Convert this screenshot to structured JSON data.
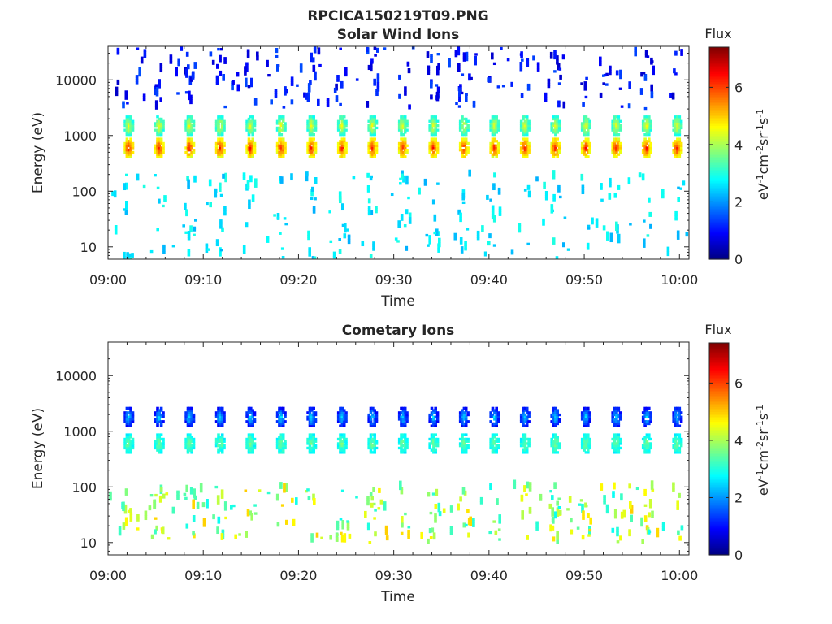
{
  "figure": {
    "title": "RPCICA150219T09.PNG"
  },
  "chart_data": [
    {
      "type": "heatmap",
      "title": "Solar Wind Ions",
      "xlabel": "Time",
      "ylabel": "Energy (eV)",
      "x_range": [
        "09:00",
        "10:01"
      ],
      "x_ticks": [
        "09:00",
        "09:10",
        "09:20",
        "09:30",
        "09:40",
        "09:50",
        "10:00"
      ],
      "y_scale": "log",
      "y_range": [
        6,
        40000
      ],
      "y_ticks": [
        "10",
        "100",
        "1000",
        "10000"
      ],
      "colorbar": {
        "label": "Flux",
        "units": "eV⁻¹cm⁻²sr⁻¹s⁻¹",
        "ticks": [
          "0",
          "2",
          "4",
          "6"
        ],
        "range": [
          0,
          7.4
        ],
        "colormap": "jet"
      },
      "grid": false,
      "pattern": {
        "scan_period_minutes": 3.2,
        "first_scan_minute": 2.2,
        "bands": [
          {
            "name": "proton peak",
            "energy_ev": 600,
            "flux": [
              4.5,
              6.3
            ]
          },
          {
            "name": "alpha peak",
            "energy_ev": 1500,
            "flux": [
              3.0,
              4.5
            ]
          },
          {
            "name": "high-energy background",
            "energy_ev": [
              3000,
              40000
            ],
            "flux": [
              0.5,
              1.5
            ]
          },
          {
            "name": "low-energy background",
            "energy_ev": [
              6,
              200
            ],
            "flux": [
              2.2,
              3.0
            ]
          }
        ]
      }
    },
    {
      "type": "heatmap",
      "title": "Cometary Ions",
      "xlabel": "Time",
      "ylabel": "Energy (eV)",
      "x_range": [
        "09:00",
        "10:01"
      ],
      "x_ticks": [
        "09:00",
        "09:10",
        "09:20",
        "09:30",
        "09:40",
        "09:50",
        "10:00"
      ],
      "y_scale": "log",
      "y_range": [
        6,
        40000
      ],
      "y_ticks": [
        "10",
        "100",
        "1000",
        "10000"
      ],
      "colorbar": {
        "label": "Flux",
        "units": "eV⁻¹cm⁻²sr⁻¹s⁻¹",
        "ticks": [
          "0",
          "2",
          "4",
          "6"
        ],
        "range": [
          0,
          7.4
        ],
        "colormap": "jet"
      },
      "grid": false,
      "pattern": {
        "scan_period_minutes": 3.2,
        "first_scan_minute": 2.2,
        "bands": [
          {
            "name": "proton peak",
            "energy_ev": 600,
            "flux": [
              2.8,
              3.6
            ]
          },
          {
            "name": "alpha peak",
            "energy_ev": 1800,
            "flux": [
              1.0,
              2.5
            ]
          },
          {
            "name": "low-energy cometary ions",
            "energy_ev": [
              10,
              100
            ],
            "flux": [
              2.8,
              5.0
            ]
          }
        ]
      }
    }
  ]
}
